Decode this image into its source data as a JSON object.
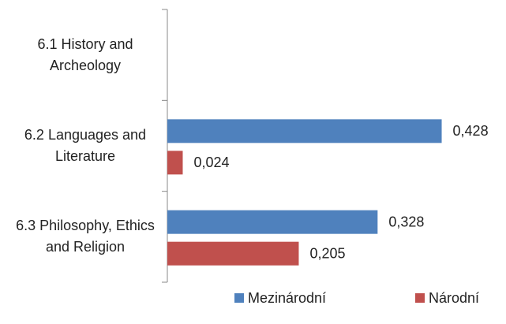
{
  "chart_data": {
    "type": "barh",
    "categories": [
      "6.1 History and Archeology",
      "6.2 Languages and Literature",
      "6.3 Philosophy, Ethics and Religion"
    ],
    "series": [
      {
        "name": "Mezinárodní",
        "color": "#4f81bd",
        "values": [
          null,
          0.428,
          0.328
        ],
        "value_labels": [
          null,
          "0,428",
          "0,328"
        ]
      },
      {
        "name": "Národní",
        "color": "#c0504d",
        "values": [
          null,
          0.024,
          0.205
        ],
        "value_labels": [
          null,
          "0,024",
          "0,205"
        ]
      }
    ],
    "xlim": [
      0,
      0.5
    ],
    "legend": "bottom"
  }
}
